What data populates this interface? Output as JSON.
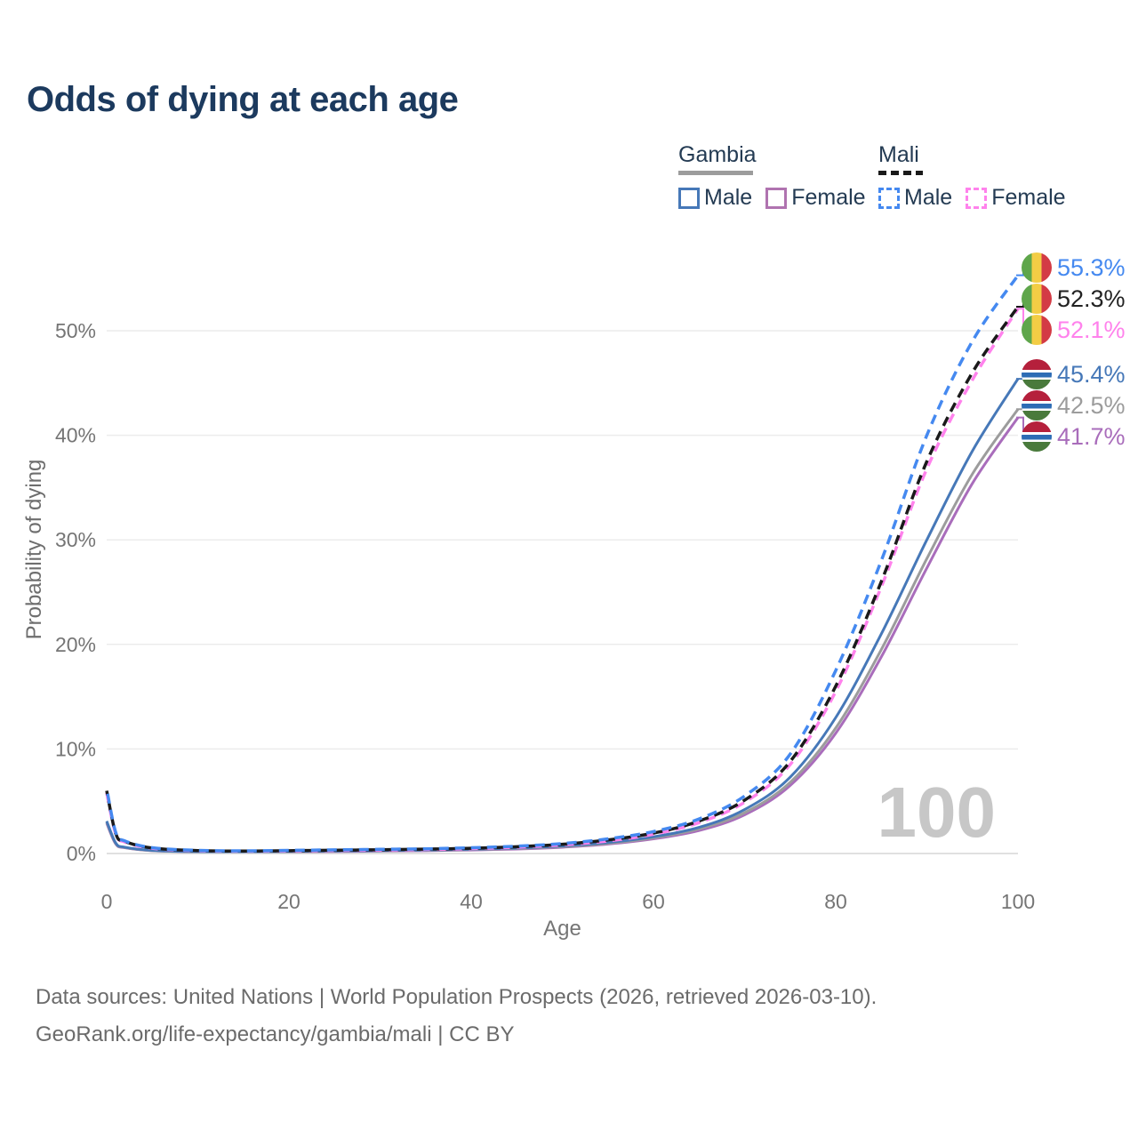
{
  "title": "Odds of dying at each age",
  "legend": {
    "groups": [
      {
        "country": "Gambia",
        "line_style": "solid",
        "underline_color": "#9c9c9c",
        "items": [
          {
            "label": "Male",
            "color": "#4678b8"
          },
          {
            "label": "Female",
            "color": "#b073b0"
          }
        ]
      },
      {
        "country": "Mali",
        "line_style": "dashed",
        "underline_color": "#1a1a1a",
        "items": [
          {
            "label": "Male",
            "color": "#4589f0"
          },
          {
            "label": "Female",
            "color": "#ff82ec"
          }
        ]
      }
    ]
  },
  "end_labels": [
    {
      "text": "55.3%",
      "color": "#4589f0",
      "flag": "mali"
    },
    {
      "text": "52.3%",
      "color": "#222222",
      "flag": "mali"
    },
    {
      "text": "52.1%",
      "color": "#ff82ec",
      "flag": "mali"
    },
    {
      "text": "45.4%",
      "color": "#4678b8",
      "flag": "gambia"
    },
    {
      "text": "42.5%",
      "color": "#9c9c9c",
      "flag": "gambia"
    },
    {
      "text": "41.7%",
      "color": "#a96dbb",
      "flag": "gambia"
    }
  ],
  "watermark_age": "100",
  "footer": {
    "line1": "Data sources: United Nations | World Population Prospects (2026, retrieved 2026-03-10).",
    "line2": "GeoRank.org/life-expectancy/gambia/mali | CC BY"
  },
  "chart_data": {
    "type": "line",
    "title": "Odds of dying at each age",
    "xlabel": "Age",
    "ylabel": "Probability of dying",
    "xlim": [
      0,
      100
    ],
    "ylim": [
      0,
      50
    ],
    "x_ticks": [
      0,
      20,
      40,
      60,
      80,
      100
    ],
    "y_ticks": [
      0,
      10,
      20,
      30,
      40,
      50
    ],
    "y_tick_suffix": "%",
    "grid": "horizontal",
    "legend_position": "top-right",
    "x": [
      0,
      1,
      2,
      5,
      10,
      15,
      20,
      25,
      30,
      35,
      40,
      45,
      50,
      55,
      60,
      65,
      70,
      75,
      80,
      85,
      90,
      95,
      100
    ],
    "series": [
      {
        "name": "Mali Male",
        "style": "dashed",
        "color": "#4589f0",
        "end_value": 55.3,
        "values": [
          6.2,
          2.0,
          1.2,
          0.55,
          0.3,
          0.25,
          0.3,
          0.35,
          0.4,
          0.45,
          0.55,
          0.7,
          0.95,
          1.4,
          2.1,
          3.3,
          5.5,
          9.5,
          17.5,
          28.0,
          40.0,
          49.0,
          55.3
        ]
      },
      {
        "name": "Mali Both sexes",
        "style": "dashed",
        "color": "#1a1a1a",
        "end_value": 52.3,
        "values": [
          6.0,
          1.9,
          1.15,
          0.52,
          0.28,
          0.23,
          0.27,
          0.31,
          0.36,
          0.42,
          0.5,
          0.65,
          0.88,
          1.3,
          1.95,
          3.1,
          5.1,
          8.8,
          16.0,
          26.0,
          37.5,
          46.0,
          52.3
        ]
      },
      {
        "name": "Mali Female",
        "style": "dashed",
        "color": "#ff82ec",
        "end_value": 52.1,
        "values": [
          5.8,
          1.85,
          1.1,
          0.5,
          0.27,
          0.22,
          0.25,
          0.29,
          0.33,
          0.38,
          0.46,
          0.6,
          0.82,
          1.2,
          1.85,
          2.95,
          4.9,
          8.5,
          15.5,
          25.5,
          36.8,
          45.3,
          52.1
        ]
      },
      {
        "name": "Gambia Male",
        "style": "solid",
        "color": "#4678b8",
        "end_value": 45.4,
        "values": [
          3.1,
          1.0,
          0.6,
          0.3,
          0.18,
          0.16,
          0.2,
          0.24,
          0.28,
          0.33,
          0.4,
          0.52,
          0.72,
          1.05,
          1.6,
          2.5,
          4.2,
          7.3,
          13.0,
          21.0,
          30.0,
          38.5,
          45.4
        ]
      },
      {
        "name": "Gambia Both sexes",
        "style": "solid",
        "color": "#9c9c9c",
        "end_value": 42.5,
        "values": [
          3.0,
          0.95,
          0.57,
          0.28,
          0.17,
          0.15,
          0.18,
          0.22,
          0.26,
          0.3,
          0.37,
          0.48,
          0.66,
          0.97,
          1.5,
          2.35,
          3.9,
          6.8,
          12.0,
          19.5,
          28.2,
          36.3,
          42.5
        ]
      },
      {
        "name": "Gambia Female",
        "style": "solid",
        "color": "#a96dbb",
        "end_value": 41.7,
        "values": [
          2.9,
          0.9,
          0.55,
          0.27,
          0.16,
          0.14,
          0.16,
          0.19,
          0.23,
          0.27,
          0.33,
          0.43,
          0.6,
          0.9,
          1.4,
          2.2,
          3.7,
          6.5,
          11.5,
          18.8,
          27.3,
          35.4,
          41.7
        ]
      }
    ]
  }
}
